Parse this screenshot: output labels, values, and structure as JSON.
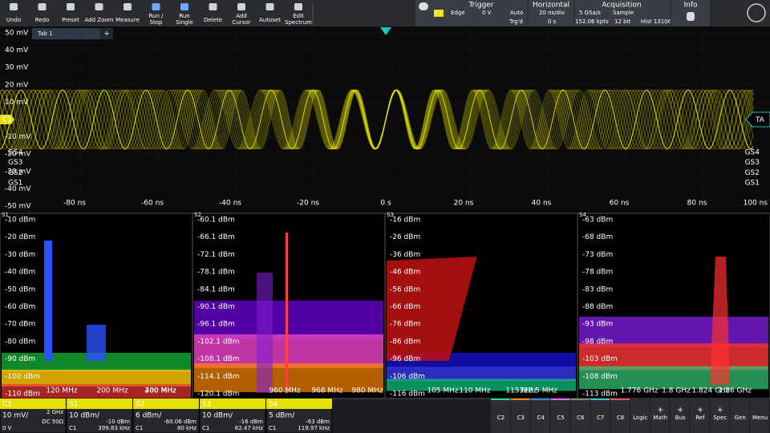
{
  "toolbar": [
    "Undo",
    "Redo",
    "Preset",
    "Add Zoom",
    "Measure",
    "Run / Stop",
    "Run Single",
    "Delete",
    "Add Cursor",
    "Autoset",
    "Edit Spectrum"
  ],
  "trigger": {
    "title": "Trigger",
    "source": "C1",
    "type": "Edge",
    "level": "0 V",
    "mode": "Auto",
    "state": "Trg'd"
  },
  "horizontal": {
    "title": "Horizontal",
    "scale": "20 ns/div",
    "position": "0 s"
  },
  "acquisition": {
    "title": "Acquisition",
    "rate": "5 GSa/s",
    "mode": "Sample",
    "points": "152.06 kpts",
    "resolution": "12 bit",
    "hist": "Hist 13106"
  },
  "info": {
    "title": "Info"
  },
  "tabs": [
    "Tab 1"
  ],
  "add_tab": "+",
  "time_plot": {
    "y_labels": [
      "50 mV",
      "40 mV",
      "30 mV",
      "20 mV",
      "10 mV",
      "C1",
      "-10 mV",
      "-20 mV",
      "-30 mV",
      "-40 mV",
      "-50 mV"
    ],
    "x_labels": [
      "-80 ns",
      "-60 ns",
      "-40 ns",
      "-20 ns",
      "0 s",
      "20 ns",
      "40 ns",
      "60 ns",
      "80 ns",
      "100 ns"
    ],
    "gates": [
      "GS4",
      "GS3",
      "GS2",
      "GS1"
    ],
    "trigger_marker": "TA"
  },
  "spectra": [
    {
      "name": "S1",
      "y_labels": [
        "-10 dBm",
        "-20 dBm",
        "-30 dBm",
        "-40 dBm",
        "-50 dBm",
        "-60 dBm",
        "-70 dBm",
        "-80 dBm",
        "-90 dBm",
        "-100 dBm",
        "-110 dBm"
      ],
      "x_labels": [
        "120 MHz",
        "200 MHz",
        "280 MHz",
        "400 MHz"
      ]
    },
    {
      "name": "S2",
      "y_labels": [
        "-60.1 dBm",
        "-66.1 dBm",
        "-72.1 dBm",
        "-78.1 dBm",
        "-84.1 dBm",
        "-90.1 dBm",
        "-96.1 dBm",
        "-102.1 dBm",
        "-108.1 dBm",
        "-114.1 dBm",
        "-120.1 dBm"
      ],
      "x_labels": [
        "960 MHz",
        "968 MHz",
        "980 MHz"
      ]
    },
    {
      "name": "S3",
      "y_labels": [
        "-16 dBm",
        "-26 dBm",
        "-36 dBm",
        "-46 dBm",
        "-56 dBm",
        "-66 dBm",
        "-76 dBm",
        "-86 dBm",
        "-96 dBm",
        "-106 dBm",
        "-116 dBm"
      ],
      "x_labels": [
        "105 MHz",
        "110 MHz",
        "115 MHz",
        "122.5 MHz"
      ]
    },
    {
      "name": "S4",
      "y_labels": [
        "-63 dBm",
        "-68 dBm",
        "-73 dBm",
        "-78 dBm",
        "-83 dBm",
        "-88 dBm",
        "-93 dBm",
        "-98 dBm",
        "-103 dBm",
        "-108 dBm",
        "-113 dBm"
      ],
      "x_labels": [
        "1.776 GHz",
        "1.8 GHz",
        "1.824 GHz",
        "1.86 GHz"
      ]
    }
  ],
  "channels": [
    {
      "name": "C1",
      "scale": "10 mV/",
      "info_top": "2 GHz",
      "info_bottom": "DC 50Ω",
      "bottom_left": "0 V"
    },
    {
      "name": "S1",
      "scale": "10 dBm/",
      "info_bottom": "-10 dBm",
      "bottom_left": "C1",
      "bottom_right": "399.83 kHz"
    },
    {
      "name": "S2",
      "scale": "6 dBm/",
      "info_bottom": "-60.06 dBm",
      "bottom_left": "C1",
      "bottom_right": "80 kHz"
    },
    {
      "name": "S3",
      "scale": "10 dBm/",
      "info_bottom": "-16 dBm",
      "bottom_left": "C1",
      "bottom_right": "62.47 kHz"
    },
    {
      "name": "S4",
      "scale": "5 dBm/",
      "info_bottom": "-63 dBm",
      "bottom_left": "C1",
      "bottom_right": "119.97 kHz"
    }
  ],
  "buttons": [
    "C2",
    "C3",
    "C4",
    "C5",
    "C6",
    "C7",
    "C8",
    "Logic",
    "Math",
    "Bus",
    "Ref",
    "Spec",
    "Gen",
    "Menu"
  ]
}
